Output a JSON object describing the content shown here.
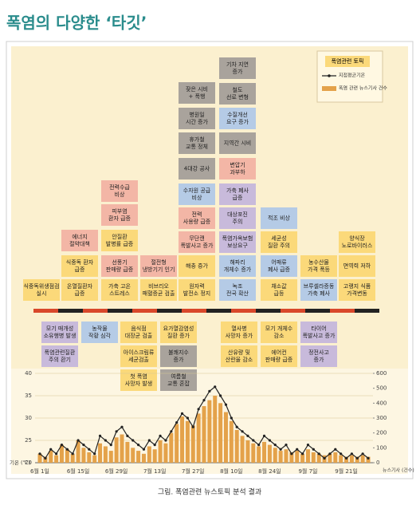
{
  "title": "폭염의 다양한 ‘타깃’",
  "caption": "그림. 폭염관련 뉴스토픽 분석 결과",
  "legend_topic": "폭염관련 토픽",
  "topics": [
    {
      "lines": [
        "식중독위생점검",
        "실시"
      ],
      "color": "#fbd97a"
    },
    {
      "lines": [
        "에너지",
        "절약대책"
      ],
      "color": "#f3b6a6"
    },
    {
      "lines": [
        "식중독 환자",
        "급증"
      ],
      "color": "#fbd97a"
    },
    {
      "lines": [
        "온열질환자",
        "급증"
      ],
      "color": "#fbd97a"
    },
    {
      "lines": [
        "전력수급",
        "비상"
      ],
      "color": "#f3b6a6"
    },
    {
      "lines": [
        "피부염",
        "환자 급증"
      ],
      "color": "#f3b6a6"
    },
    {
      "lines": [
        "안질환",
        "발병률 급증"
      ],
      "color": "#fbd97a"
    },
    {
      "lines": [
        "선풍기",
        "판매량 급증"
      ],
      "color": "#f3b6a6"
    },
    {
      "lines": [
        "가축 고온",
        "스트레스"
      ],
      "color": "#fbd97a"
    },
    {
      "lines": [
        "절전형",
        "냉방기기 인기"
      ],
      "color": "#f3b6a6"
    },
    {
      "lines": [
        "비브리오",
        "패혈증균 검출"
      ],
      "color": "#fbd97a"
    },
    {
      "lines": [
        "잦은 시비",
        "+ 폭행"
      ],
      "color": "#a9a39c"
    },
    {
      "lines": [
        "병원일",
        "시간 증가"
      ],
      "color": "#a9a39c"
    },
    {
      "lines": [
        "휴가철",
        "교통 정체"
      ],
      "color": "#a9a39c"
    },
    {
      "lines": [
        "4대강 공사"
      ],
      "color": "#a9a39c"
    },
    {
      "lines": [
        "수자원 공급",
        "비상"
      ],
      "color": "#b5cbe6"
    },
    {
      "lines": [
        "전력",
        "사용량 급증"
      ],
      "color": "#f3b6a6"
    },
    {
      "lines": [
        "무단캔",
        "폭발사고 증가"
      ],
      "color": "#f3b6a6"
    },
    {
      "lines": [
        "해충 증가"
      ],
      "color": "#fbd97a"
    },
    {
      "lines": [
        "원자력",
        "발전소 정지"
      ],
      "color": "#fbd97a"
    },
    {
      "lines": [
        "기차 지연",
        "증가"
      ],
      "color": "#a9a39c"
    },
    {
      "lines": [
        "철도",
        "선로 변형"
      ],
      "color": "#a9a39c"
    },
    {
      "lines": [
        "수질개선",
        "요구 증가"
      ],
      "color": "#b5cbe6"
    },
    {
      "lines": [
        "지역간 시비"
      ],
      "color": "#a9a39c"
    },
    {
      "lines": [
        "변압기",
        "과부하"
      ],
      "color": "#f3b6a6"
    },
    {
      "lines": [
        "가축 폐사",
        "급증"
      ],
      "color": "#c8badb"
    },
    {
      "lines": [
        "대상포진",
        "주의"
      ],
      "color": "#c8badb"
    },
    {
      "lines": [
        "폭염가옥보험",
        "보상요구"
      ],
      "color": "#c8badb"
    },
    {
      "lines": [
        "해파리",
        "개체수 증가"
      ],
      "color": "#b5cbe6"
    },
    {
      "lines": [
        "녹조",
        "전국 확산"
      ],
      "color": "#b5cbe6"
    },
    {
      "lines": [
        "적조 비상"
      ],
      "color": "#b5cbe6"
    },
    {
      "lines": [
        "세균성",
        "질환 주의"
      ],
      "color": "#fbd97a"
    },
    {
      "lines": [
        "어패류",
        "폐사 급증"
      ],
      "color": "#b5cbe6"
    },
    {
      "lines": [
        "채소값",
        "급등"
      ],
      "color": "#fbd97a"
    },
    {
      "lines": [
        "농수산물",
        "가격 폭등"
      ],
      "color": "#fbd97a"
    },
    {
      "lines": [
        "브루셀라증동",
        "가축 폐사"
      ],
      "color": "#b5cbe6"
    },
    {
      "lines": [
        "양식장",
        "노로바이러스"
      ],
      "color": "#fbd97a"
    },
    {
      "lines": [
        "면역력 저하"
      ],
      "color": "#fbd97a"
    },
    {
      "lines": [
        "고랭지 식품",
        "가격변동"
      ],
      "color": "#fbd97a"
    },
    {
      "lines": [
        "모기 매개성",
        "소유행병 발생"
      ],
      "color": "#c8badb"
    },
    {
      "lines": [
        "폭염관련질환",
        "주의 환기"
      ],
      "color": "#c8badb"
    },
    {
      "lines": [
        "농작물",
        "작황 심각"
      ],
      "color": "#b5cbe6"
    },
    {
      "lines": [
        "음식점",
        "대장균 검출"
      ],
      "color": "#fbd97a"
    },
    {
      "lines": [
        "아이스크림류",
        "세균검출"
      ],
      "color": "#fbd97a"
    },
    {
      "lines": [
        "첫 폭염",
        "사망자 발생"
      ],
      "color": "#fbd97a"
    },
    {
      "lines": [
        "요가열감염성",
        "질환 증가"
      ],
      "color": "#fbd97a"
    },
    {
      "lines": [
        "불쾌지수",
        "증가"
      ],
      "color": "#a9a39c"
    },
    {
      "lines": [
        "여름철",
        "교통 혼잡"
      ],
      "color": "#a9a39c"
    },
    {
      "lines": [
        "열사병",
        "사망자 증가"
      ],
      "color": "#fbd97a"
    },
    {
      "lines": [
        "산유량 및",
        "산란율 감소"
      ],
      "color": "#fbd97a"
    },
    {
      "lines": [
        "모기 개체수",
        "감소"
      ],
      "color": "#fbd97a"
    },
    {
      "lines": [
        "에어컨",
        "판매량 급증"
      ],
      "color": "#fbd97a"
    },
    {
      "lines": [
        "타이어",
        "폭발사고 증가"
      ],
      "color": "#c8badb"
    },
    {
      "lines": [
        "정전사고",
        "증가"
      ],
      "color": "#c8badb"
    }
  ],
  "chart_data": {
    "type": "bar-line",
    "y_label": "기온 (℃)",
    "y2_label": "뉴스기사 (건수)",
    "categories": [
      "6월 1일",
      null,
      null,
      null,
      null,
      null,
      null,
      "6월 15일",
      null,
      null,
      null,
      null,
      null,
      null,
      "6월 29일",
      null,
      null,
      null,
      null,
      null,
      null,
      "7월 13일",
      null,
      null,
      null,
      null,
      null,
      null,
      "7월 27일",
      null,
      null,
      null,
      null,
      null,
      null,
      "8월 10일",
      null,
      null,
      null,
      null,
      null,
      null,
      "8월 24일",
      null,
      null,
      null,
      null,
      null,
      null,
      "9월 7일",
      null,
      null,
      null,
      null,
      null,
      null,
      "9월 21일",
      null,
      null,
      null,
      null
    ],
    "series": [
      {
        "name": "지점평균기온",
        "color": "#222222",
        "axis": "y",
        "values": [
          22,
          21,
          23,
          22,
          24,
          23,
          22,
          25,
          24,
          23,
          22,
          26,
          25,
          24,
          27,
          28,
          26,
          25,
          24,
          23,
          25,
          24,
          26,
          25,
          27,
          29,
          31,
          30,
          28,
          32,
          34,
          36,
          37,
          35,
          33,
          30,
          28,
          27,
          26,
          25,
          24,
          26,
          25,
          24,
          23,
          24,
          22,
          23,
          22,
          24,
          23,
          22,
          21,
          22,
          23,
          22,
          21,
          22,
          21,
          22,
          21
        ]
      },
      {
        "name": "폭염 관련 뉴스기사 건수",
        "color": "#e4a24a",
        "axis": "y2",
        "values": [
          60,
          40,
          80,
          50,
          120,
          90,
          60,
          150,
          100,
          70,
          50,
          130,
          110,
          80,
          170,
          190,
          140,
          100,
          80,
          60,
          110,
          90,
          150,
          130,
          200,
          260,
          310,
          280,
          250,
          330,
          380,
          420,
          450,
          400,
          340,
          280,
          220,
          180,
          150,
          130,
          110,
          140,
          120,
          100,
          80,
          90,
          70,
          80,
          60,
          90,
          70,
          60,
          50,
          60,
          70,
          50,
          40,
          50,
          40,
          50,
          40
        ]
      }
    ],
    "ylim": [
      20,
      40
    ],
    "yticks": [
      20,
      25,
      30,
      35,
      40
    ],
    "y2lim": [
      0,
      600
    ],
    "y2ticks": [
      0,
      100,
      200,
      300,
      400,
      500,
      600
    ],
    "grid": true
  }
}
